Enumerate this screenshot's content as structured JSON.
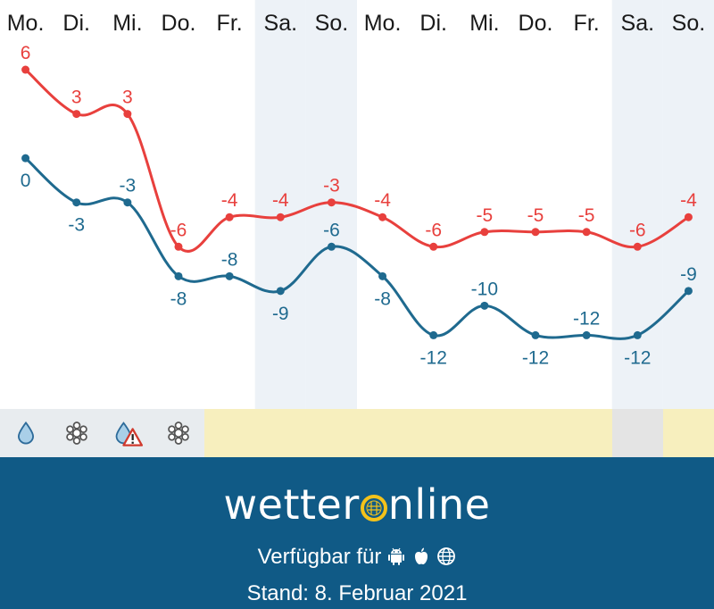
{
  "chart_data": {
    "type": "line",
    "categories": [
      "Mo.",
      "Di.",
      "Mi.",
      "Do.",
      "Fr.",
      "Sa.",
      "So.",
      "Mo.",
      "Di.",
      "Mi.",
      "Do.",
      "Fr.",
      "Sa.",
      "So."
    ],
    "weekend_indices": [
      5,
      6,
      12,
      13
    ],
    "series": [
      {
        "color": "#e8403d",
        "values": [
          6,
          3,
          3,
          -6,
          -4,
          -4,
          -3,
          -4,
          -6,
          -5,
          -5,
          -5,
          -6,
          -4
        ]
      },
      {
        "color": "#1f6a8f",
        "values": [
          0,
          -3,
          -3,
          -8,
          -8,
          -9,
          -6,
          -8,
          -12,
          -10,
          -12,
          -12,
          -12,
          -9
        ]
      }
    ],
    "ylim": [
      -17,
      8
    ]
  },
  "icons": [
    {
      "icon": "raindrop-icon"
    },
    {
      "icon": "snowflake-icon"
    },
    {
      "icon": "freezing-rain-warning-icon"
    },
    {
      "icon": "snowflake-icon"
    }
  ],
  "colors": {
    "max": "#e8403d",
    "min": "#1f6a8f",
    "weekend": "#edf2f7",
    "footer": "#105a86",
    "logo_o": "#f4c21a",
    "strip": "#f7efbe",
    "strip_weekend": "#e4e4e4"
  },
  "footer": {
    "logo_left": "wetter",
    "logo_right": "nline",
    "available": "Verfügbar für",
    "stand": "Stand: 8. Februar 2021"
  }
}
